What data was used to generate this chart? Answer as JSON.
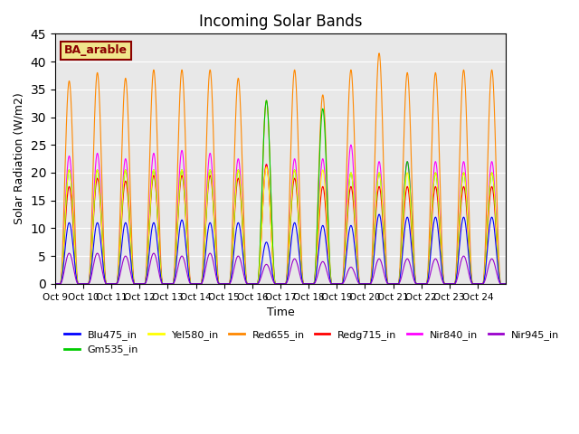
{
  "title": "Incoming Solar Bands",
  "xlabel": "Time",
  "ylabel": "Solar Radiation (W/m2)",
  "ylim": [
    0,
    45
  ],
  "background_color": "#e8e8e8",
  "annotation_text": "BA_arable",
  "annotation_color": "#8B0000",
  "annotation_bg": "#f0e68c",
  "series": {
    "Blu475_in": {
      "color": "#0000ff",
      "peak": 11.0
    },
    "Gm535_in": {
      "color": "#00cc00",
      "peak": 20.5
    },
    "Yel580_in": {
      "color": "#ffff00",
      "peak": 21.0
    },
    "Red655_in": {
      "color": "#ff8800",
      "peak": 38.0
    },
    "Redg715_in": {
      "color": "#ff0000",
      "peak": 18.0
    },
    "Nir840_in": {
      "color": "#ff00ff",
      "peak": 23.0
    },
    "Nir945_in": {
      "color": "#9900cc",
      "peak": 5.5
    }
  },
  "x_tick_labels": [
    "Oct 9",
    "Oct 10",
    "Oct 11",
    "Oct 12",
    "Oct 13",
    "Oct 14",
    "Oct 15",
    "Oct 16",
    "Oct 17",
    "Oct 18",
    "Oct 19",
    "Oct 20",
    "Oct 21",
    "Oct 22",
    "Oct 23",
    "Oct 24"
  ],
  "num_days": 16,
  "points_per_day": 200,
  "day_peaks_Red655": [
    36.5,
    38.0,
    37.0,
    38.5,
    38.5,
    38.5,
    37.0,
    33.0,
    38.5,
    34.0,
    38.5,
    41.5,
    38.0,
    38.0,
    38.5,
    38.5
  ],
  "day_peaks_Nir840": [
    23.0,
    23.5,
    22.5,
    23.5,
    24.0,
    23.5,
    22.5,
    21.5,
    22.5,
    22.5,
    25.0,
    22.0,
    22.0,
    22.0,
    22.0,
    22.0
  ],
  "day_peaks_Redg715": [
    17.5,
    19.0,
    18.5,
    19.5,
    19.5,
    19.5,
    19.0,
    21.5,
    19.0,
    17.5,
    17.5,
    17.5,
    17.5,
    17.5,
    17.5,
    17.5
  ],
  "day_peaks_Gm535": [
    20.5,
    20.5,
    20.5,
    20.5,
    20.5,
    20.5,
    20.5,
    33.0,
    20.5,
    31.5,
    20.0,
    20.0,
    22.0,
    20.0,
    20.0,
    20.0
  ],
  "day_peaks_Yel580": [
    20.5,
    20.5,
    20.5,
    20.5,
    20.5,
    20.5,
    20.5,
    21.0,
    20.5,
    20.5,
    20.0,
    20.0,
    20.0,
    20.0,
    20.0,
    20.0
  ],
  "day_peaks_Blu475": [
    11.0,
    11.0,
    11.0,
    11.0,
    11.5,
    11.0,
    11.0,
    7.5,
    11.0,
    10.5,
    10.5,
    12.5,
    12.0,
    12.0,
    12.0,
    12.0
  ],
  "day_peaks_Nir945": [
    5.5,
    5.5,
    5.0,
    5.5,
    5.0,
    5.5,
    5.0,
    3.5,
    4.5,
    4.0,
    3.0,
    4.5,
    4.5,
    4.5,
    5.0,
    4.5
  ]
}
